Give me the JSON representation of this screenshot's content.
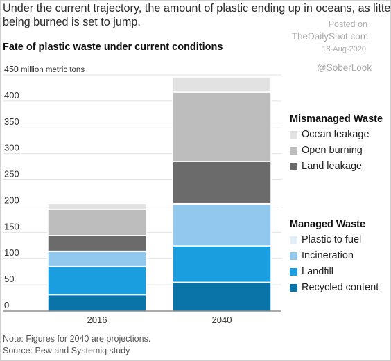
{
  "headline": {
    "line1": "Under the current trajectory, the amount of plastic ending up in oceans, as litter or",
    "line2": "being burned is set to jump."
  },
  "watermark": {
    "posted": "Posted on",
    "site": "TheDailyShot.com",
    "date": "18-Aug-2020",
    "handle": "@SoberLook"
  },
  "footer": {
    "note": "Note: Figures for 2040 are projections.",
    "source": "Source: Pew and Systemiq study"
  },
  "chart_data": {
    "type": "bar",
    "stacked": true,
    "title": "Fate of plastic waste under current conditions",
    "ylabel": "million metric tons",
    "ylim": [
      0,
      450
    ],
    "yticks": [
      0,
      50,
      100,
      150,
      200,
      250,
      300,
      350,
      400,
      450
    ],
    "grid": true,
    "legend_position": "right",
    "categories": [
      "2016",
      "2040"
    ],
    "legend_groups": [
      {
        "title": "Mismanaged Waste",
        "series": [
          "Ocean leakage",
          "Open burning",
          "Land leakage"
        ]
      },
      {
        "title": "Managed Waste",
        "series": [
          "Plastic to fuel",
          "Incineration",
          "Landfill",
          "Recycled content"
        ]
      }
    ],
    "series": [
      {
        "name": "Recycled content",
        "color": "#0a73a8",
        "values": [
          31,
          55
        ]
      },
      {
        "name": "Landfill",
        "color": "#1b9ee0",
        "values": [
          54,
          69
        ]
      },
      {
        "name": "Incineration",
        "color": "#92c8ee",
        "values": [
          29,
          79
        ]
      },
      {
        "name": "Plastic to fuel",
        "color": "#e4eef6",
        "values": [
          0,
          2
        ]
      },
      {
        "name": "Land leakage",
        "color": "#6b6b6b",
        "values": [
          30,
          80
        ]
      },
      {
        "name": "Open burning",
        "color": "#bdbdbd",
        "values": [
          50,
          132
        ]
      },
      {
        "name": "Ocean leakage",
        "color": "#e2e2e2",
        "values": [
          10,
          29
        ]
      }
    ]
  }
}
